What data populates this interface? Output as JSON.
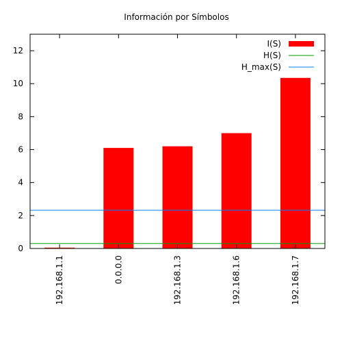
{
  "chart_data": {
    "type": "bar",
    "title": "Información por Símbolos",
    "xlabel": "",
    "ylabel": "",
    "categories": [
      "192.168.1.1",
      "0.0.0.0",
      "192.168.1.3",
      "192.168.1.6",
      "192.168.1.7"
    ],
    "series": [
      {
        "name": "I(S)",
        "type": "bar",
        "color": "#ff0000",
        "values": [
          0.05,
          6.1,
          6.2,
          7.0,
          10.35
        ]
      }
    ],
    "hlines": [
      {
        "name": "H(S)",
        "value": 0.3,
        "color": "#00a000"
      },
      {
        "name": "H_max(S)",
        "value": 2.32,
        "color": "#0080ff"
      }
    ],
    "ylim": [
      0,
      13
    ],
    "yticks": [
      0,
      2,
      4,
      6,
      8,
      10,
      12
    ],
    "grid": false,
    "legend_position": "top-right"
  }
}
